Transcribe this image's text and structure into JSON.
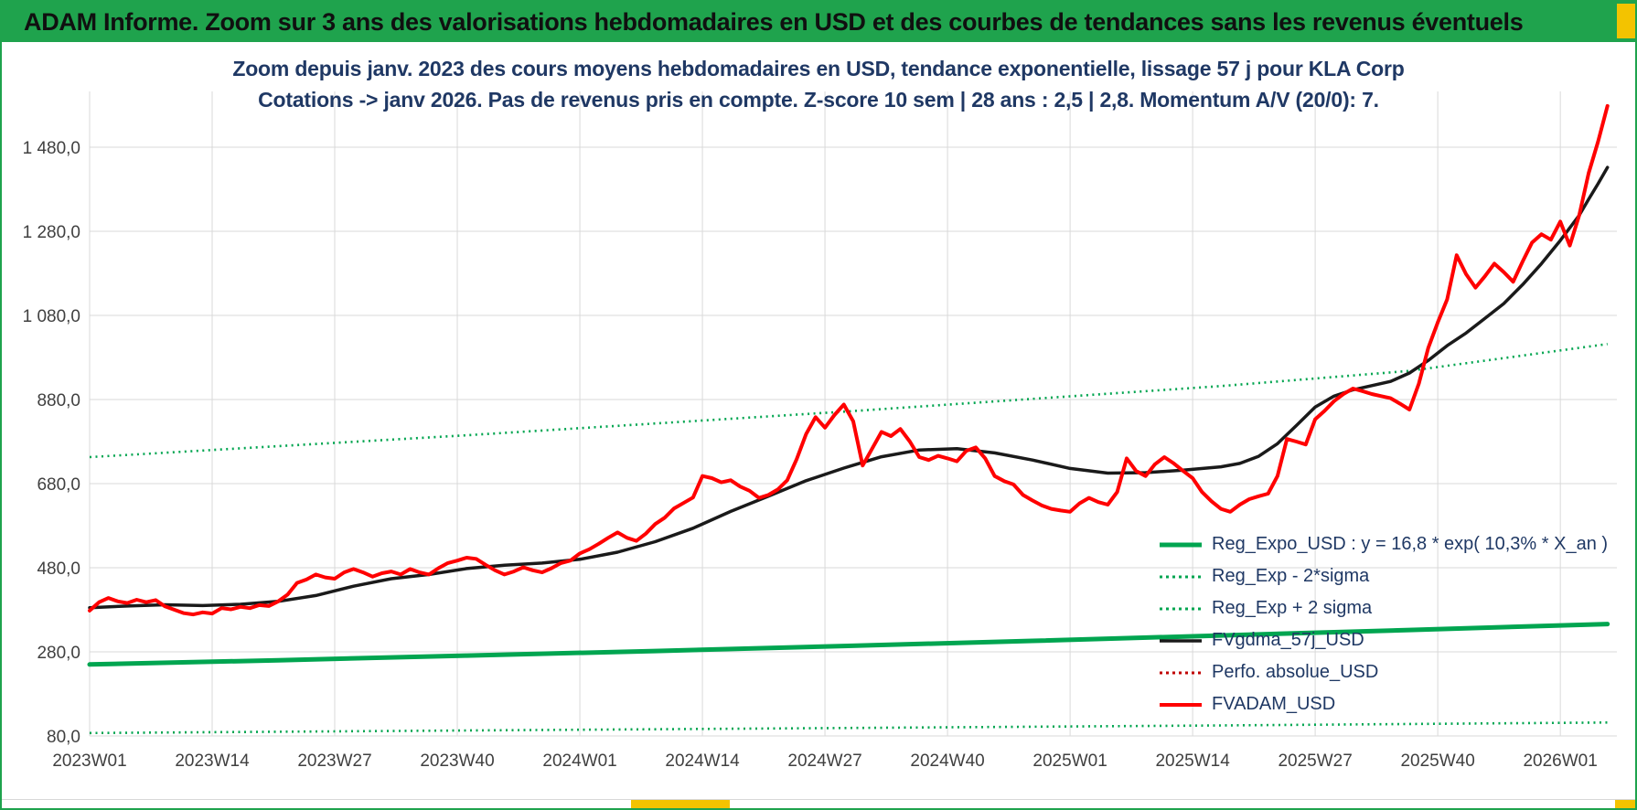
{
  "banner": {
    "text": "ADAM Informe. Zoom sur 3 ans des valorisations hebdomadaires en USD et des courbes de tendances sans les revenus éventuels"
  },
  "theme": {
    "banner_green": "#1fa34d",
    "border_green": "#1fa34d",
    "accent_yellow": "#f3c300",
    "title_navy": "#1f3864",
    "axis_label_gray": "#404040",
    "grid_gray": "#d9d9d9",
    "series_green": "#00a550",
    "series_red": "#ff0000",
    "series_dark_red": "#c00000",
    "series_black": "#1a1a1a"
  },
  "chart_data": {
    "type": "line",
    "title_line1": "Zoom depuis janv. 2023 des cours moyens hebdomadaires en USD, tendance exponentielle, lissage 57 j pour KLA Corp",
    "title_line2": "Cotations -> janv 2026. Pas de revenus pris en compte. Z-score 10 sem | 28 ans : 2,5 | 2,8. Momentum A/V (20/0): 7.",
    "grid": true,
    "legend_position": "right-center",
    "x_axis": {
      "tick_labels": [
        "2023W01",
        "2023W14",
        "2023W27",
        "2023W40",
        "2024W01",
        "2024W14",
        "2024W27",
        "2024W40",
        "2025W01",
        "2025W14",
        "2025W27",
        "2025W40",
        "2026W01"
      ],
      "tick_weeks": [
        0,
        13,
        26,
        39,
        52,
        65,
        78,
        91,
        104,
        117,
        130,
        143,
        156
      ],
      "range_weeks": [
        0,
        162
      ]
    },
    "y_axis": {
      "tick_values": [
        80,
        280,
        480,
        680,
        880,
        1080,
        1280,
        1480
      ],
      "tick_labels": [
        "80,0",
        "280,0",
        "480,0",
        "680,0",
        "880,0",
        "1 080,0",
        "1 280,0",
        "1 480,0"
      ],
      "range": [
        80,
        1480
      ]
    },
    "series": [
      {
        "id": "reg-expo",
        "name": "Reg_Expo_USD : y = 16,8 * exp( 10,3% *  X_an )",
        "color": "#00a550",
        "style": "solid",
        "width": 5,
        "points": [
          [
            0,
            250
          ],
          [
            20,
            260
          ],
          [
            40,
            271
          ],
          [
            60,
            282
          ],
          [
            80,
            294
          ],
          [
            100,
            306
          ],
          [
            120,
            319
          ],
          [
            140,
            332
          ],
          [
            161,
            346
          ]
        ]
      },
      {
        "id": "reg-exp-minus-2sigma",
        "name": "Reg_Exp - 2*sigma",
        "color": "#00a550",
        "style": "dotted",
        "width": 2.6,
        "points": [
          [
            0,
            87
          ],
          [
            40,
            93
          ],
          [
            80,
            99
          ],
          [
            120,
            105
          ],
          [
            161,
            112
          ]
        ]
      },
      {
        "id": "reg-exp-plus-2sigma",
        "name": "Reg_Exp + 2 sigma",
        "color": "#00a550",
        "style": "dotted",
        "width": 2.6,
        "points": [
          [
            0,
            743
          ],
          [
            40,
            795
          ],
          [
            80,
            851
          ],
          [
            120,
            912
          ],
          [
            140,
            948
          ],
          [
            161,
            1012
          ]
        ]
      },
      {
        "id": "fvgdma-57j",
        "name": "FVgdma_57j_USD",
        "color": "#1a1a1a",
        "style": "solid",
        "width": 3.5,
        "points": [
          [
            0,
            385
          ],
          [
            4,
            389
          ],
          [
            8,
            392
          ],
          [
            12,
            390
          ],
          [
            16,
            393
          ],
          [
            20,
            400
          ],
          [
            24,
            414
          ],
          [
            28,
            436
          ],
          [
            32,
            454
          ],
          [
            36,
            464
          ],
          [
            40,
            478
          ],
          [
            44,
            486
          ],
          [
            48,
            491
          ],
          [
            52,
            500
          ],
          [
            56,
            517
          ],
          [
            60,
            542
          ],
          [
            64,
            574
          ],
          [
            68,
            614
          ],
          [
            72,
            650
          ],
          [
            76,
            687
          ],
          [
            80,
            717
          ],
          [
            84,
            744
          ],
          [
            88,
            760
          ],
          [
            92,
            763
          ],
          [
            96,
            753
          ],
          [
            100,
            736
          ],
          [
            104,
            716
          ],
          [
            108,
            705
          ],
          [
            112,
            706
          ],
          [
            116,
            712
          ],
          [
            120,
            720
          ],
          [
            122,
            728
          ],
          [
            124,
            745
          ],
          [
            126,
            775
          ],
          [
            128,
            818
          ],
          [
            130,
            862
          ],
          [
            132,
            888
          ],
          [
            134,
            903
          ],
          [
            136,
            913
          ],
          [
            138,
            923
          ],
          [
            140,
            943
          ],
          [
            142,
            973
          ],
          [
            144,
            1008
          ],
          [
            146,
            1038
          ],
          [
            148,
            1073
          ],
          [
            150,
            1108
          ],
          [
            152,
            1153
          ],
          [
            154,
            1203
          ],
          [
            156,
            1258
          ],
          [
            158,
            1318
          ],
          [
            159,
            1356
          ],
          [
            160,
            1393
          ],
          [
            161,
            1432
          ]
        ]
      },
      {
        "id": "perfo-absolue",
        "name": "Perfo. absolue_USD",
        "color": "#c00000",
        "style": "dotted",
        "width": 2.2,
        "points": []
      },
      {
        "id": "fvadam",
        "name": "FVADAM_USD",
        "color": "#ff0000",
        "style": "solid",
        "width": 4,
        "points": [
          [
            0,
            378
          ],
          [
            1,
            398
          ],
          [
            2,
            408
          ],
          [
            3,
            400
          ],
          [
            4,
            396
          ],
          [
            5,
            404
          ],
          [
            6,
            398
          ],
          [
            7,
            403
          ],
          [
            8,
            388
          ],
          [
            9,
            380
          ],
          [
            10,
            372
          ],
          [
            11,
            369
          ],
          [
            12,
            374
          ],
          [
            13,
            371
          ],
          [
            14,
            384
          ],
          [
            15,
            381
          ],
          [
            16,
            387
          ],
          [
            17,
            384
          ],
          [
            18,
            391
          ],
          [
            19,
            389
          ],
          [
            20,
            400
          ],
          [
            21,
            416
          ],
          [
            22,
            444
          ],
          [
            23,
            452
          ],
          [
            24,
            464
          ],
          [
            25,
            457
          ],
          [
            26,
            454
          ],
          [
            27,
            469
          ],
          [
            28,
            477
          ],
          [
            29,
            469
          ],
          [
            30,
            459
          ],
          [
            31,
            467
          ],
          [
            32,
            471
          ],
          [
            33,
            464
          ],
          [
            34,
            477
          ],
          [
            35,
            469
          ],
          [
            36,
            464
          ],
          [
            37,
            479
          ],
          [
            38,
            491
          ],
          [
            39,
            497
          ],
          [
            40,
            504
          ],
          [
            41,
            501
          ],
          [
            42,
            487
          ],
          [
            43,
            474
          ],
          [
            44,
            464
          ],
          [
            45,
            471
          ],
          [
            46,
            481
          ],
          [
            47,
            474
          ],
          [
            48,
            469
          ],
          [
            49,
            479
          ],
          [
            50,
            491
          ],
          [
            51,
            497
          ],
          [
            52,
            514
          ],
          [
            53,
            524
          ],
          [
            54,
            537
          ],
          [
            55,
            551
          ],
          [
            56,
            564
          ],
          [
            57,
            551
          ],
          [
            58,
            544
          ],
          [
            59,
            561
          ],
          [
            60,
            584
          ],
          [
            61,
            599
          ],
          [
            62,
            621
          ],
          [
            63,
            634
          ],
          [
            64,
            647
          ],
          [
            65,
            698
          ],
          [
            66,
            693
          ],
          [
            67,
            683
          ],
          [
            68,
            688
          ],
          [
            69,
            673
          ],
          [
            70,
            663
          ],
          [
            71,
            646
          ],
          [
            72,
            653
          ],
          [
            73,
            666
          ],
          [
            74,
            688
          ],
          [
            75,
            738
          ],
          [
            76,
            798
          ],
          [
            77,
            838
          ],
          [
            78,
            813
          ],
          [
            79,
            843
          ],
          [
            80,
            868
          ],
          [
            81,
            828
          ],
          [
            82,
            723
          ],
          [
            83,
            763
          ],
          [
            84,
            803
          ],
          [
            85,
            793
          ],
          [
            86,
            810
          ],
          [
            87,
            780
          ],
          [
            88,
            743
          ],
          [
            89,
            736
          ],
          [
            90,
            746
          ],
          [
            91,
            740
          ],
          [
            92,
            733
          ],
          [
            93,
            758
          ],
          [
            94,
            766
          ],
          [
            95,
            740
          ],
          [
            96,
            698
          ],
          [
            97,
            686
          ],
          [
            98,
            678
          ],
          [
            99,
            653
          ],
          [
            100,
            640
          ],
          [
            101,
            628
          ],
          [
            102,
            620
          ],
          [
            103,
            616
          ],
          [
            104,
            613
          ],
          [
            105,
            633
          ],
          [
            106,
            646
          ],
          [
            107,
            636
          ],
          [
            108,
            630
          ],
          [
            109,
            660
          ],
          [
            110,
            740
          ],
          [
            111,
            710
          ],
          [
            112,
            698
          ],
          [
            113,
            726
          ],
          [
            114,
            743
          ],
          [
            115,
            728
          ],
          [
            116,
            710
          ],
          [
            117,
            693
          ],
          [
            118,
            660
          ],
          [
            119,
            638
          ],
          [
            120,
            620
          ],
          [
            121,
            613
          ],
          [
            122,
            630
          ],
          [
            123,
            643
          ],
          [
            124,
            650
          ],
          [
            125,
            656
          ],
          [
            126,
            698
          ],
          [
            127,
            786
          ],
          [
            128,
            780
          ],
          [
            129,
            773
          ],
          [
            130,
            833
          ],
          [
            131,
            853
          ],
          [
            132,
            876
          ],
          [
            133,
            893
          ],
          [
            134,
            906
          ],
          [
            135,
            900
          ],
          [
            136,
            893
          ],
          [
            137,
            888
          ],
          [
            138,
            883
          ],
          [
            139,
            870
          ],
          [
            140,
            856
          ],
          [
            141,
            918
          ],
          [
            142,
            1003
          ],
          [
            143,
            1063
          ],
          [
            144,
            1118
          ],
          [
            145,
            1223
          ],
          [
            146,
            1178
          ],
          [
            147,
            1146
          ],
          [
            148,
            1173
          ],
          [
            149,
            1203
          ],
          [
            150,
            1183
          ],
          [
            151,
            1160
          ],
          [
            152,
            1208
          ],
          [
            153,
            1253
          ],
          [
            154,
            1273
          ],
          [
            155,
            1260
          ],
          [
            156,
            1303
          ],
          [
            157,
            1246
          ],
          [
            158,
            1318
          ],
          [
            159,
            1418
          ],
          [
            160,
            1493
          ],
          [
            161,
            1578
          ]
        ]
      }
    ]
  }
}
